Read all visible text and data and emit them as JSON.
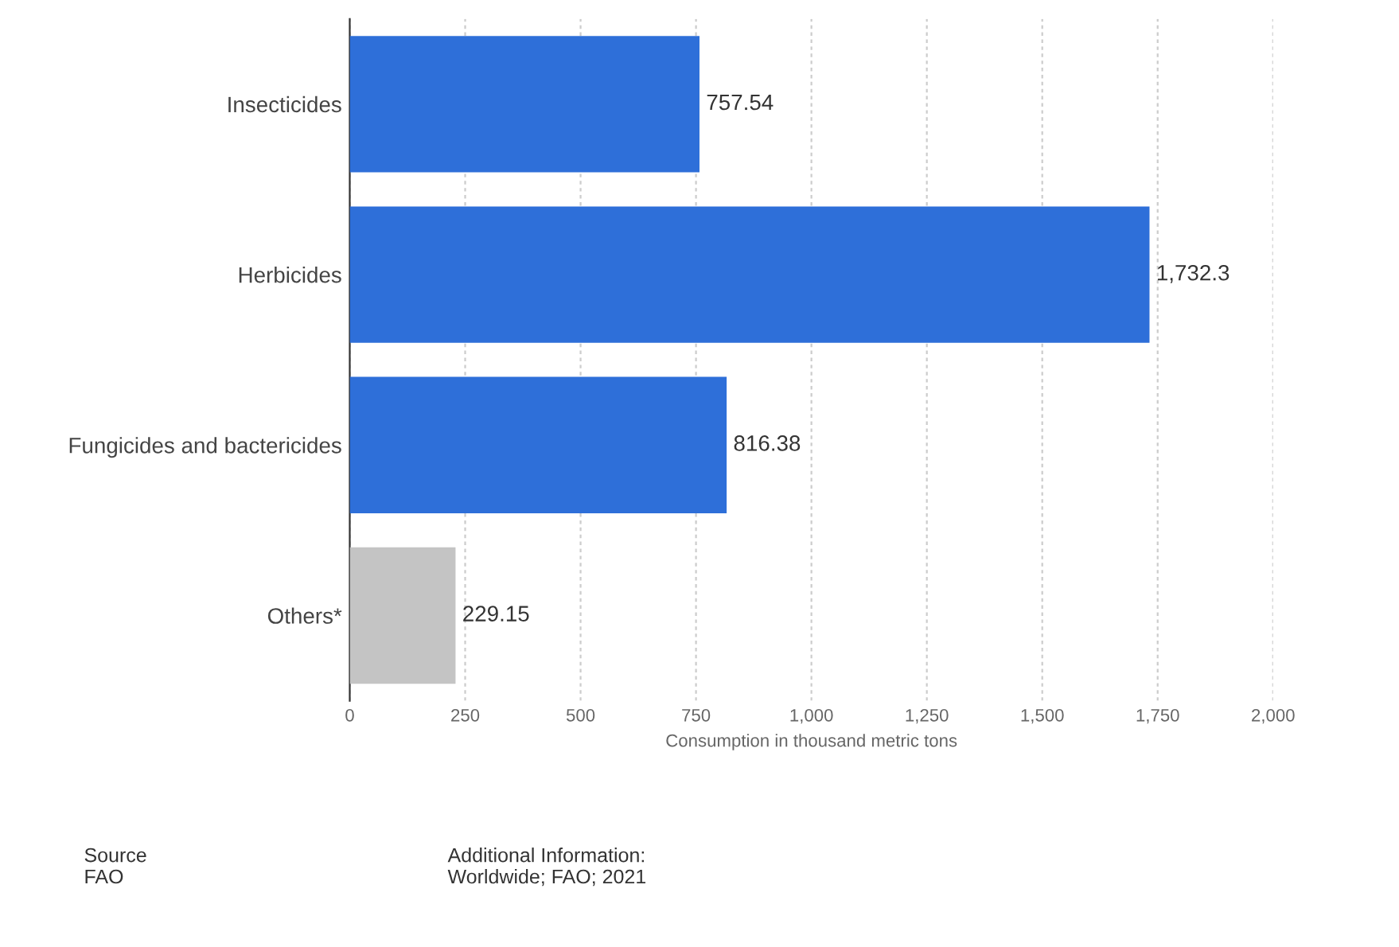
{
  "chart_data": {
    "type": "bar",
    "orientation": "horizontal",
    "categories": [
      "Insecticides",
      "Herbicides",
      "Fungicides and bactericides",
      "Others*"
    ],
    "values": [
      757.54,
      1732.3,
      816.38,
      229.15
    ],
    "colors": [
      "#2e6fd9",
      "#2e6fd9",
      "#2e6fd9",
      "#c4c4c4"
    ],
    "value_labels": [
      "757.54",
      "1,732.3",
      "816.38",
      "229.15"
    ],
    "xlabel": "Consumption in thousand metric tons",
    "xlim": [
      0,
      2000
    ],
    "xticks": [
      0,
      250,
      500,
      750,
      {
        "value": 1000,
        "label": "1,000"
      },
      {
        "value": 1250,
        "label": "1,250"
      },
      {
        "value": 1500,
        "label": "1,500"
      },
      {
        "value": 1750,
        "label": "1,750"
      },
      {
        "value": 2000,
        "label": "2,000"
      }
    ],
    "grid": "x",
    "annotations": [
      "Source\nFAO",
      "Additional Information:\nWorldwide; FAO; 2021"
    ]
  }
}
